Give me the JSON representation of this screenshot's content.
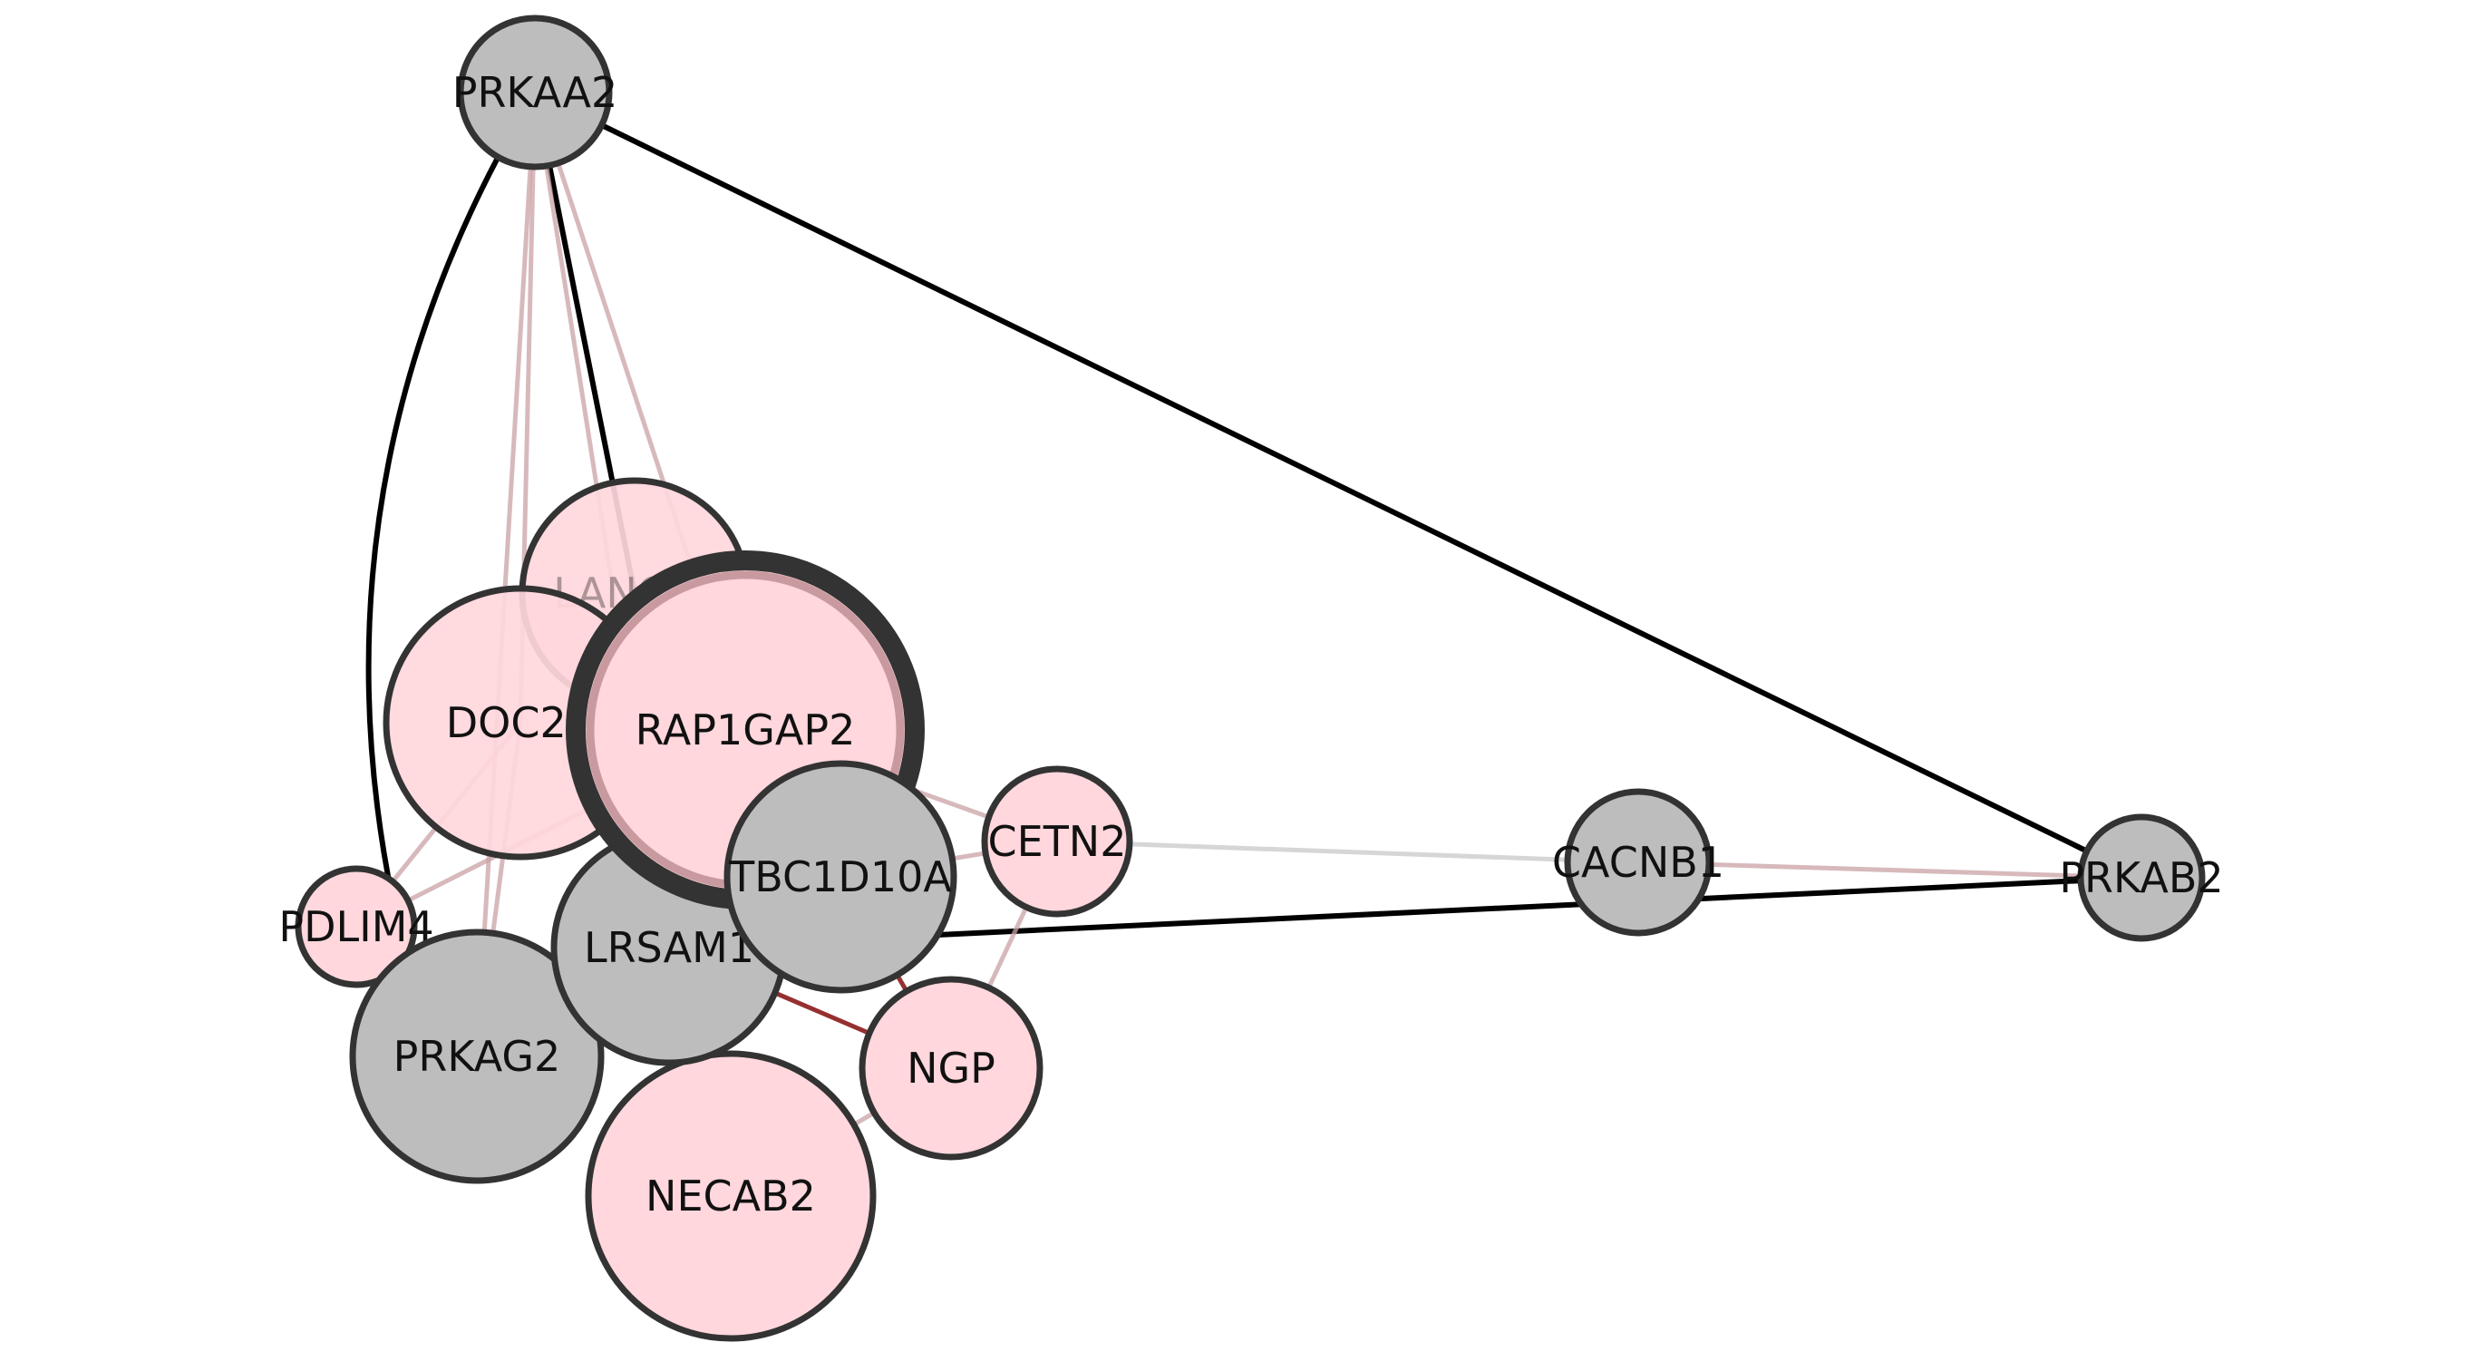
{
  "colors": {
    "background": "#ffffff",
    "node_pink": "#ffd7dc",
    "node_gray": "#bdbdbd",
    "node_stroke": "#333333",
    "edge_black": "#000000",
    "edge_red": "#8b1a1a",
    "edge_pink": "#c9a2a5",
    "edge_light_gray": "#d6d6d6"
  },
  "nodes": [
    {
      "id": "PRKAA2",
      "label": "PRKAA2",
      "color": "gray"
    },
    {
      "id": "PRKAB2",
      "label": "PRKAB2",
      "color": "gray"
    },
    {
      "id": "CACNB1",
      "label": "CACNB1",
      "color": "gray"
    },
    {
      "id": "PRKAG2",
      "label": "PRKAG2",
      "color": "gray"
    },
    {
      "id": "LRSAM1",
      "label": "LRSAM1",
      "color": "gray"
    },
    {
      "id": "TBC1D10A",
      "label": "TBC1D10A",
      "color": "gray"
    },
    {
      "id": "LANCL2",
      "label": "LANCL2",
      "color": "pink"
    },
    {
      "id": "DOC2A",
      "label": "DOC2A",
      "color": "pink"
    },
    {
      "id": "RAP1GAP2",
      "label": "RAP1GAP2",
      "color": "pink",
      "highlighted": true
    },
    {
      "id": "CETN2",
      "label": "CETN2",
      "color": "pink"
    },
    {
      "id": "PDLIM4",
      "label": "PDLIM4",
      "color": "pink"
    },
    {
      "id": "NGP",
      "label": "NGP",
      "color": "pink"
    },
    {
      "id": "NECAB2",
      "label": "NECAB2",
      "color": "pink"
    }
  ],
  "edges": [
    {
      "source": "PRKAA2",
      "target": "PRKAB2",
      "style": "black"
    },
    {
      "source": "PRKAA2",
      "target": "PDLIM4",
      "style": "black",
      "curved": true
    },
    {
      "source": "PRKAA2",
      "target": "LANCL2",
      "style": "black"
    },
    {
      "source": "PRKAA2",
      "target": "RAP1GAP2",
      "style": "pink"
    },
    {
      "source": "PRKAA2",
      "target": "DOC2A",
      "style": "pink"
    },
    {
      "source": "PRKAA2",
      "target": "PRKAG2",
      "style": "pink"
    },
    {
      "source": "PRKAA2",
      "target": "LRSAM1",
      "style": "pink"
    },
    {
      "source": "LRSAM1",
      "target": "PRKAB2",
      "style": "black"
    },
    {
      "source": "CACNB1",
      "target": "PRKAB2",
      "style": "pink"
    },
    {
      "source": "CETN2",
      "target": "CACNB1",
      "style": "light-gray"
    },
    {
      "source": "RAP1GAP2",
      "target": "CETN2",
      "style": "pink"
    },
    {
      "source": "RAP1GAP2",
      "target": "PDLIM4",
      "style": "pink"
    },
    {
      "source": "DOC2A",
      "target": "PDLIM4",
      "style": "pink"
    },
    {
      "source": "DOC2A",
      "target": "PRKAG2",
      "style": "pink"
    },
    {
      "source": "LANCL2",
      "target": "LRSAM1",
      "style": "pink"
    },
    {
      "source": "TBC1D10A",
      "target": "NGP",
      "style": "red"
    },
    {
      "source": "LRSAM1",
      "target": "NGP",
      "style": "red"
    },
    {
      "source": "CETN2",
      "target": "NGP",
      "style": "pink"
    },
    {
      "source": "NGP",
      "target": "NECAB2",
      "style": "pink"
    },
    {
      "source": "TBC1D10A",
      "target": "CETN2",
      "style": "pink"
    }
  ]
}
